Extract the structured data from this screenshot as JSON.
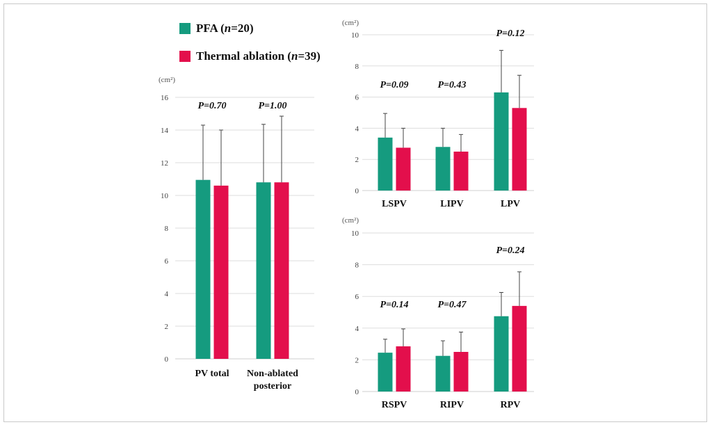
{
  "colors": {
    "pfa": "#159b7f",
    "thermal": "#e30f4c",
    "axis": "#444444",
    "grid": "#dddddd"
  },
  "legend": {
    "pfa": {
      "name": "PFA",
      "n_label": "n",
      "n_value": "=20"
    },
    "thermal": {
      "name": "Thermal ablation",
      "n_label": "n",
      "n_value": "=39"
    }
  },
  "chart_data": [
    {
      "type": "bar",
      "unit": "(cm²)",
      "ylim": [
        0,
        16
      ],
      "yticks": [
        "0",
        "2",
        "4",
        "6",
        "8",
        "10",
        "12",
        "14",
        "16"
      ],
      "grid": true,
      "categories": [
        "PV total",
        "Non-ablated posterior"
      ],
      "category_lines": [
        [
          "PV total"
        ],
        [
          "Non-ablated",
          "posterior"
        ]
      ],
      "p_labels": [
        "P=0.70",
        "P=1.00"
      ],
      "series": [
        {
          "name": "PFA (n=20)",
          "values": [
            10.95,
            10.8
          ],
          "errors": [
            14.3,
            14.35
          ]
        },
        {
          "name": "Thermal ablation (n=39)",
          "values": [
            10.6,
            10.8
          ],
          "errors": [
            14.0,
            14.85
          ]
        }
      ]
    },
    {
      "type": "bar",
      "unit": "(cm²)",
      "ylim": [
        0,
        10
      ],
      "yticks": [
        "0",
        "2",
        "4",
        "6",
        "8",
        "10"
      ],
      "grid": true,
      "categories": [
        "LSPV",
        "LIPV",
        "LPV"
      ],
      "category_lines": [
        [
          "LSPV"
        ],
        [
          "LIPV"
        ],
        [
          "LPV"
        ]
      ],
      "p_labels": [
        "P=0.09",
        "P=0.43",
        "P=0.12"
      ],
      "series": [
        {
          "name": "PFA (n=20)",
          "values": [
            3.4,
            2.8,
            6.3
          ],
          "errors": [
            4.95,
            4.0,
            9.0
          ]
        },
        {
          "name": "Thermal ablation (n=39)",
          "values": [
            2.75,
            2.5,
            5.3
          ],
          "errors": [
            4.0,
            3.6,
            7.4
          ]
        }
      ]
    },
    {
      "type": "bar",
      "unit": "(cm²)",
      "ylim": [
        0,
        10
      ],
      "yticks": [
        "0",
        "2",
        "4",
        "6",
        "8",
        "10"
      ],
      "grid": true,
      "categories": [
        "RSPV",
        "RIPV",
        "RPV"
      ],
      "category_lines": [
        [
          "RSPV"
        ],
        [
          "RIPV"
        ],
        [
          "RPV"
        ]
      ],
      "p_labels": [
        "P=0.14",
        "P=0.47",
        "P=0.24"
      ],
      "series": [
        {
          "name": "PFA (n=20)",
          "values": [
            2.45,
            2.25,
            4.75
          ],
          "errors": [
            3.3,
            3.2,
            6.25
          ]
        },
        {
          "name": "Thermal ablation (n=39)",
          "values": [
            2.85,
            2.5,
            5.4
          ],
          "errors": [
            3.95,
            3.75,
            7.55
          ]
        }
      ]
    }
  ]
}
